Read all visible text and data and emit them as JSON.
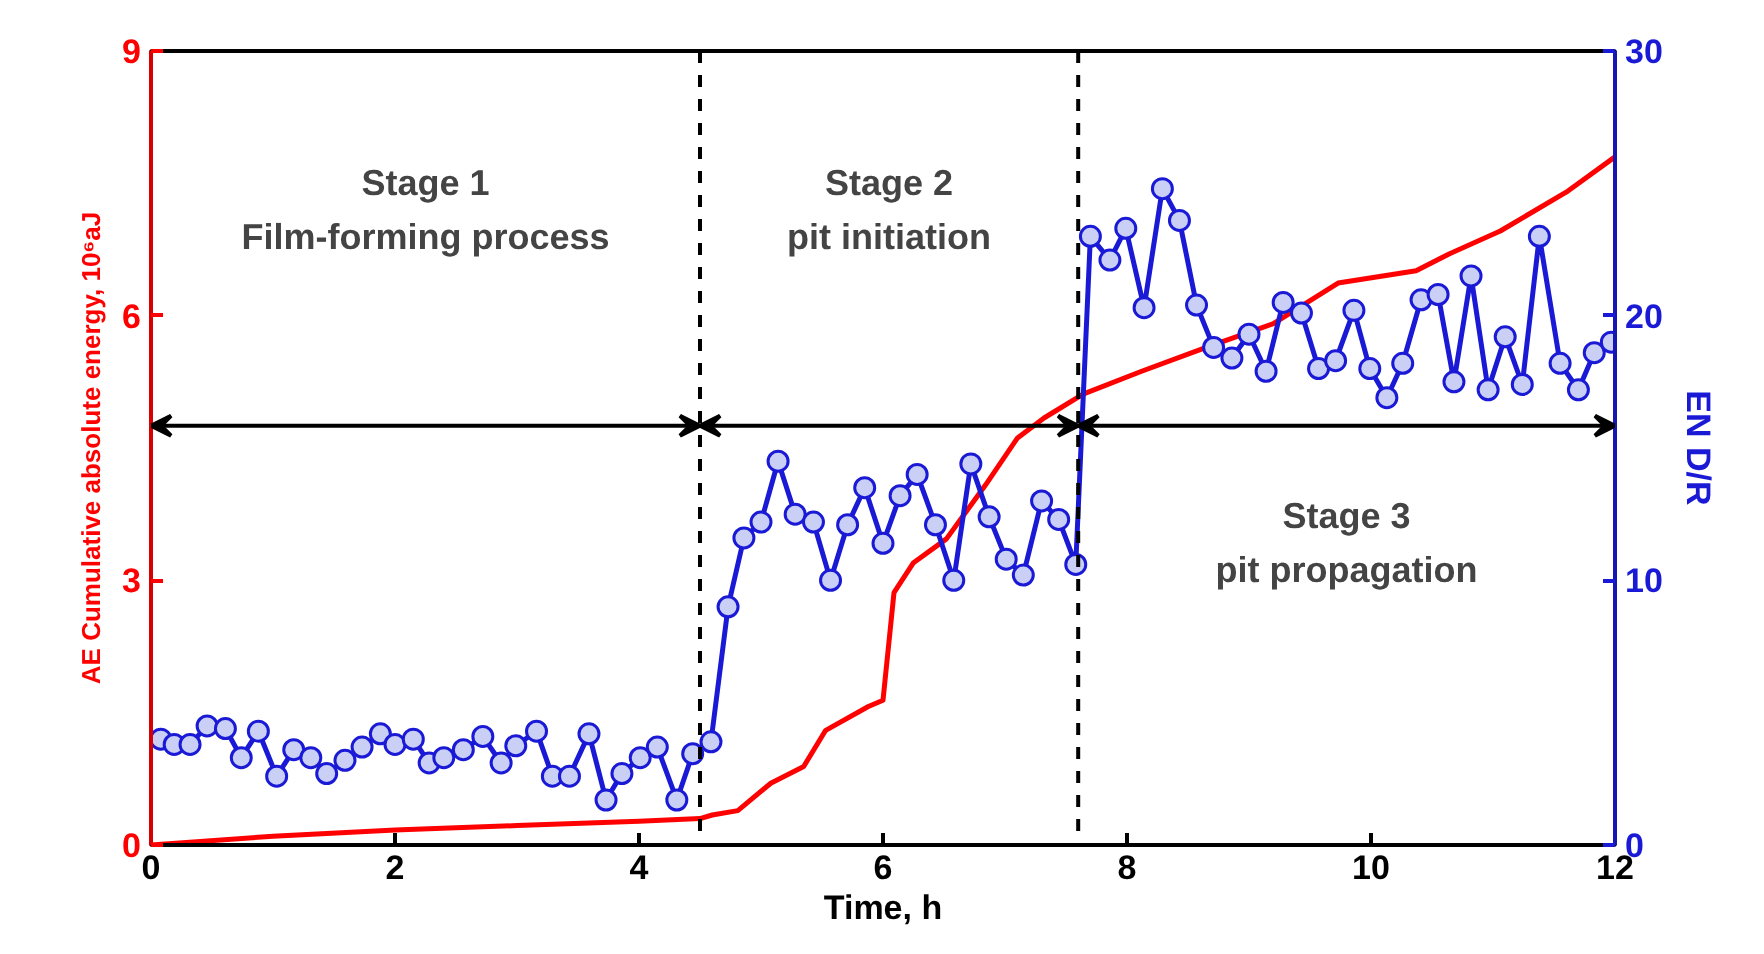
{
  "chart_data": {
    "type": "line",
    "xlabel": "Time, h",
    "ylabel": "AE Cumulative absolute energy, 10⁶aJ",
    "y2label": "EN D/R",
    "series": [
      {
        "color": "#ff0000",
        "marker": "none",
        "x": [
          0,
          1,
          2,
          3,
          4,
          4.5,
          4.6,
          4.81,
          5.08,
          5.35,
          5.53,
          5.88,
          6.0,
          6.09,
          6.25,
          6.52,
          6.84,
          7.1,
          7.32,
          7.64,
          8.12,
          8.65,
          9.2,
          9.73,
          10.37,
          10.64,
          11.06,
          11.6,
          12
        ],
        "values": [
          0,
          0.1,
          0.17,
          0.22,
          0.27,
          0.3,
          0.34,
          0.39,
          0.7,
          0.89,
          1.3,
          1.57,
          1.64,
          2.86,
          3.2,
          3.47,
          4.08,
          4.61,
          4.84,
          5.11,
          5.37,
          5.64,
          5.91,
          6.37,
          6.51,
          6.7,
          6.96,
          7.4,
          7.8
        ]
      },
      {
        "axis": "y2",
        "color": "#1a1ad6",
        "marker": "circle",
        "x": [
          0.08,
          0.19,
          0.32,
          0.46,
          0.61,
          0.74,
          0.88,
          1.03,
          1.17,
          1.31,
          1.44,
          1.59,
          1.73,
          1.88,
          2.0,
          2.15,
          2.28,
          2.4,
          2.56,
          2.72,
          2.87,
          2.99,
          3.16,
          3.29,
          3.43,
          3.59,
          3.73,
          3.86,
          4.01,
          4.15,
          4.31,
          4.44,
          4.59,
          4.73,
          4.86,
          5.0,
          5.14,
          5.28,
          5.43,
          5.57,
          5.71,
          5.85,
          6.0,
          6.14,
          6.28,
          6.43,
          6.58,
          6.72,
          6.87,
          7.01,
          7.15,
          7.3,
          7.44,
          7.58,
          7.7,
          7.86,
          7.99,
          8.14,
          8.29,
          8.43,
          8.57,
          8.71,
          8.86,
          9.0,
          9.14,
          9.28,
          9.43,
          9.57,
          9.71,
          9.86,
          9.99,
          10.13,
          10.26,
          10.41,
          10.55,
          10.68,
          10.82,
          10.96,
          11.1,
          11.24,
          11.38,
          11.55,
          11.7,
          11.83,
          11.97
        ],
        "values": [
          4.0,
          3.8,
          3.8,
          4.5,
          4.4,
          3.3,
          4.3,
          2.6,
          3.6,
          3.3,
          2.7,
          3.2,
          3.7,
          4.2,
          3.8,
          4.0,
          3.1,
          3.3,
          3.6,
          4.1,
          3.1,
          3.75,
          4.3,
          2.6,
          2.6,
          4.2,
          1.7,
          2.7,
          3.3,
          3.7,
          1.7,
          3.45,
          3.9,
          9.0,
          11.6,
          12.2,
          14.5,
          12.5,
          12.2,
          10.0,
          12.1,
          13.5,
          11.4,
          13.2,
          14.0,
          12.1,
          10.0,
          14.4,
          12.4,
          10.8,
          10.2,
          13.0,
          12.3,
          10.6,
          23.0,
          22.1,
          23.3,
          20.3,
          24.8,
          23.6,
          20.4,
          18.8,
          18.4,
          19.3,
          17.9,
          20.5,
          20.1,
          18.0,
          18.3,
          20.2,
          18.0,
          16.9,
          18.2,
          20.6,
          20.8,
          17.5,
          21.5,
          17.2,
          19.2,
          17.4,
          23.0,
          18.2,
          17.2,
          18.6,
          19.0
        ]
      }
    ],
    "xlim": [
      0,
      12
    ],
    "xticks": [
      0,
      2,
      4,
      6,
      8,
      10,
      12
    ],
    "ylim": [
      0,
      9
    ],
    "yticks": [
      0,
      3,
      6,
      9
    ],
    "y2lim": [
      0,
      30
    ],
    "y2ticks": [
      0,
      10,
      20,
      30
    ],
    "ref_lines": [
      {
        "axis": "x",
        "value": 4.5,
        "line_style": "dashed",
        "color": "#000000"
      },
      {
        "axis": "x",
        "value": 7.6,
        "line_style": "dashed",
        "color": "#000000"
      }
    ],
    "annotations": [
      "Stage 1\nFilm-forming process",
      "Stage 2\npit initiation",
      "Stage 3\npit propagation"
    ],
    "grid": false
  }
}
